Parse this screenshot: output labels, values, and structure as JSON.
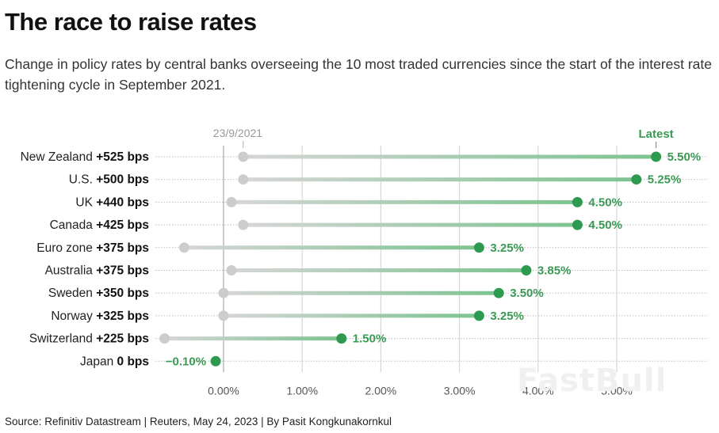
{
  "title": "The race to raise rates",
  "subtitle": "Change in policy rates by central banks overseeing the 10 most traded currencies since the start of the interest rate tightening cycle in September 2021.",
  "source": "Source: Refinitiv Datastream | Reuters, May 24, 2023 | By Pasit Kongkunakornkul",
  "watermark": "FastBull",
  "colors": {
    "start_dot": "#cccccc",
    "latest_dot": "#2e9a4f",
    "value_text": "#3a9a55"
  },
  "chart_data": {
    "type": "dot-range",
    "title": "The race to raise rates",
    "start_label": "23/9/2021",
    "end_label": "Latest",
    "xlim": [
      -0.8,
      5.7
    ],
    "x_ticks": [
      0,
      1,
      2,
      3,
      4,
      5
    ],
    "x_tick_labels": [
      "0.00%",
      "1.00%",
      "2.00%",
      "3.00%",
      "4.00%",
      "5.00%"
    ],
    "grid": true,
    "rows": [
      {
        "country": "New Zealand",
        "change": "+525 bps",
        "start": 0.25,
        "latest": 5.5,
        "latest_label": "5.50%"
      },
      {
        "country": "U.S.",
        "change": "+500 bps",
        "start": 0.25,
        "latest": 5.25,
        "latest_label": "5.25%"
      },
      {
        "country": "UK",
        "change": "+440 bps",
        "start": 0.1,
        "latest": 4.5,
        "latest_label": "4.50%"
      },
      {
        "country": "Canada",
        "change": "+425 bps",
        "start": 0.25,
        "latest": 4.5,
        "latest_label": "4.50%"
      },
      {
        "country": "Euro zone",
        "change": "+375 bps",
        "start": -0.5,
        "latest": 3.25,
        "latest_label": "3.25%"
      },
      {
        "country": "Australia",
        "change": "+375 bps",
        "start": 0.1,
        "latest": 3.85,
        "latest_label": "3.85%"
      },
      {
        "country": "Sweden",
        "change": "+350 bps",
        "start": 0.0,
        "latest": 3.5,
        "latest_label": "3.50%"
      },
      {
        "country": "Norway",
        "change": "+325 bps",
        "start": 0.0,
        "latest": 3.25,
        "latest_label": "3.25%"
      },
      {
        "country": "Switzerland",
        "change": "+225 bps",
        "start": -0.75,
        "latest": 1.5,
        "latest_label": "1.50%"
      },
      {
        "country": "Japan",
        "change": "0 bps",
        "start": -0.1,
        "latest": -0.1,
        "latest_label": "−0.10%"
      }
    ]
  }
}
